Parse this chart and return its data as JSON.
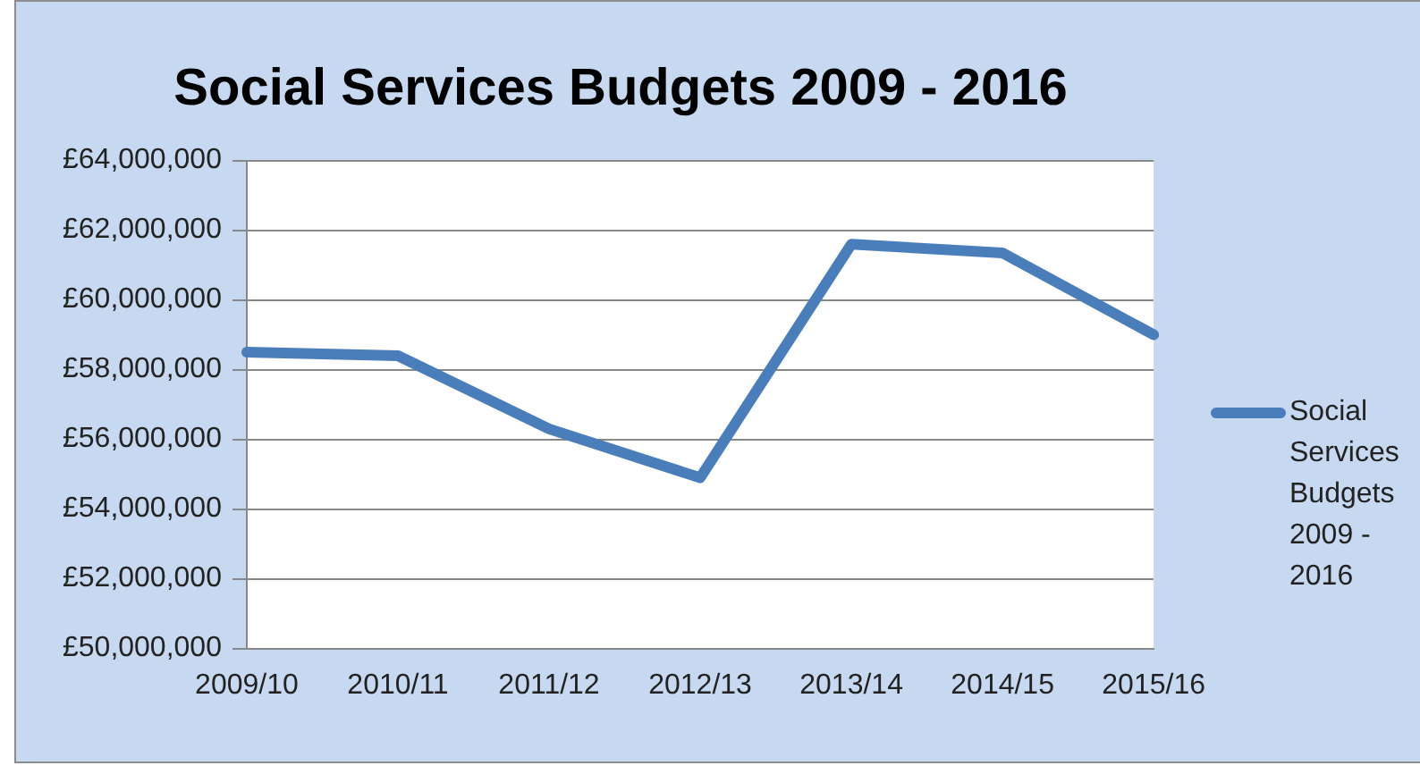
{
  "chart_data": {
    "type": "line",
    "title": "Social Services Budgets 2009 - 2016",
    "categories": [
      "2009/10",
      "2010/11",
      "2011/12",
      "2012/13",
      "2013/14",
      "2014/15",
      "2015/16"
    ],
    "series": [
      {
        "name": "Social Services Budgets 2009 - 2016",
        "color": "#4a7ebb",
        "values": [
          58500000,
          58400000,
          56300000,
          54900000,
          61600000,
          61350000,
          59000000
        ]
      }
    ],
    "ylim": [
      50000000,
      64000000
    ],
    "yticks": [
      {
        "value": 50000000,
        "label": "£50,000,000"
      },
      {
        "value": 52000000,
        "label": "£52,000,000"
      },
      {
        "value": 54000000,
        "label": "£54,000,000"
      },
      {
        "value": 56000000,
        "label": "£56,000,000"
      },
      {
        "value": 58000000,
        "label": "£58,000,000"
      },
      {
        "value": 60000000,
        "label": "£60,000,000"
      },
      {
        "value": 62000000,
        "label": "£62,000,000"
      },
      {
        "value": 64000000,
        "label": "£64,000,000"
      }
    ],
    "grid": "y",
    "legend": "right",
    "marker": "none",
    "line_style": "solid"
  }
}
